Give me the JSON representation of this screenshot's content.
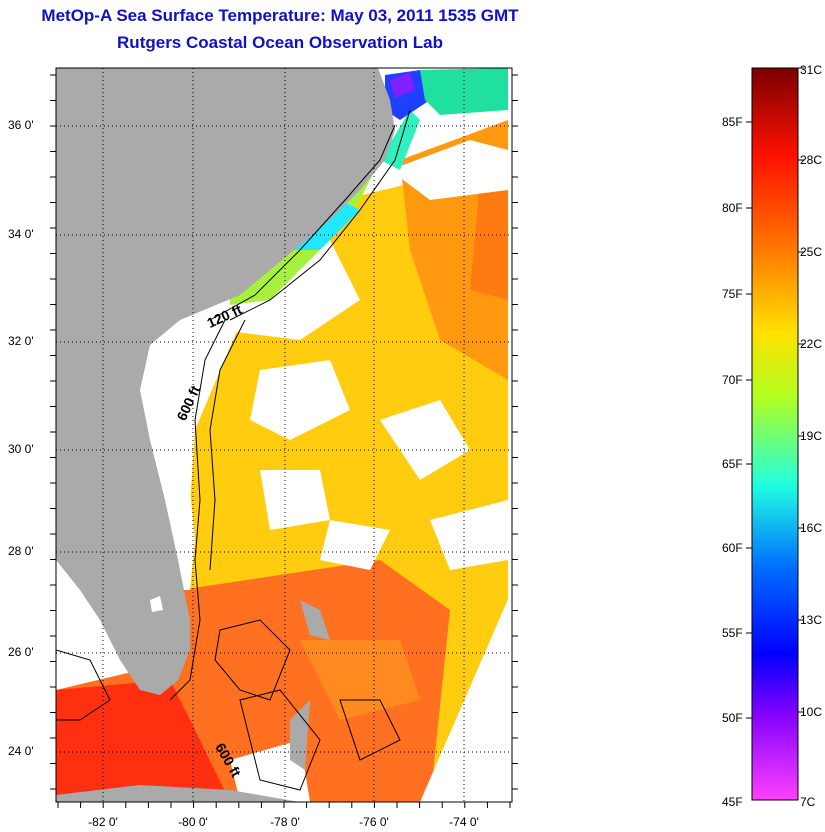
{
  "header": {
    "title": "MetOp-A Sea Surface Temperature:  May 03, 2011 1535 GMT",
    "subtitle": "Rutgers Coastal Ocean Observation Lab"
  },
  "map": {
    "latitude_labels": [
      "36 0'",
      "34 0'",
      "32 0'",
      "30 0'",
      "28 0'",
      "26 0'",
      "24 0'"
    ],
    "longitude_labels": [
      "-82 0'",
      "-80 0'",
      "-78 0'",
      "-76 0'",
      "-74 0'"
    ],
    "contour_labels": [
      "120 ft",
      "600 ft",
      "600 ft"
    ],
    "colors": {
      "land": "#aaaaaa",
      "no_data": "#ffffff",
      "frame": "#000000"
    }
  },
  "colorbar": {
    "fahrenheit_labels": [
      "85F",
      "80F",
      "75F",
      "70F",
      "65F",
      "60F",
      "55F",
      "50F",
      "45F"
    ],
    "celsius_labels": [
      "31C",
      "28C",
      "25C",
      "22C",
      "19C",
      "16C",
      "13C",
      "10C",
      "7C"
    ],
    "stops": [
      "#800000",
      "#ff0000",
      "#ff8000",
      "#ffff00",
      "#80ff00",
      "#00ffff",
      "#0080ff",
      "#0000ff",
      "#8000ff",
      "#ff40ff"
    ]
  }
}
